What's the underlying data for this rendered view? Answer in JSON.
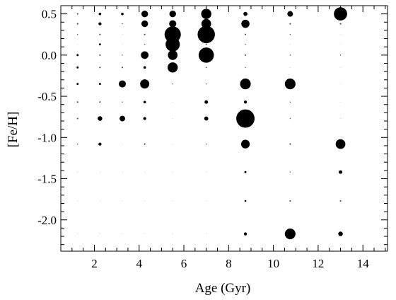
{
  "chart_data": {
    "type": "scatter",
    "title": "",
    "xlabel": "Age (Gyr)",
    "ylabel": "[Fe/H]",
    "xlim": [
      0.5,
      15.1
    ],
    "ylim": [
      -2.38,
      0.6
    ],
    "x_ticks": [
      2,
      4,
      6,
      8,
      10,
      12,
      14
    ],
    "x_tick_labels": [
      "2",
      "4",
      "6",
      "8",
      "10",
      "12",
      "14"
    ],
    "y_ticks": [
      0.5,
      0.0,
      -0.5,
      -1.0,
      -1.5,
      -2.0
    ],
    "y_tick_labels": [
      "0.5",
      "0.0",
      "-0.5",
      "-1.0",
      "-1.5",
      "-2.0"
    ],
    "grid": false,
    "marker_color": "#000000",
    "note": "Point value = relative marker size (weight) at each age / [Fe/H] bin",
    "ages": [
      1.25,
      2.25,
      3.25,
      4.25,
      5.5,
      7.0,
      8.75,
      10.75,
      13.0
    ],
    "feh": [
      0.5,
      0.38,
      0.25,
      0.13,
      0.0,
      -0.15,
      -0.35,
      -0.57,
      -0.77,
      -1.08,
      -1.42,
      -1.77,
      -2.17
    ],
    "points": [
      {
        "x": 1.25,
        "y": 0.5,
        "w": 0.3
      },
      {
        "x": 2.25,
        "y": 0.5,
        "w": 0.5
      },
      {
        "x": 3.25,
        "y": 0.5,
        "w": 0.5
      },
      {
        "x": 4.25,
        "y": 0.5,
        "w": 1.3
      },
      {
        "x": 5.5,
        "y": 0.5,
        "w": 1.3
      },
      {
        "x": 7.0,
        "y": 0.5,
        "w": 2.0
      },
      {
        "x": 8.75,
        "y": 0.5,
        "w": 0.8
      },
      {
        "x": 10.75,
        "y": 0.5,
        "w": 1.1
      },
      {
        "x": 13.0,
        "y": 0.5,
        "w": 2.6
      },
      {
        "x": 1.25,
        "y": 0.38,
        "w": 0.3
      },
      {
        "x": 2.25,
        "y": 0.38,
        "w": 0.6
      },
      {
        "x": 3.25,
        "y": 0.38,
        "w": 0.2
      },
      {
        "x": 4.25,
        "y": 0.38,
        "w": 1.3
      },
      {
        "x": 5.5,
        "y": 0.38,
        "w": 1.4
      },
      {
        "x": 7.0,
        "y": 0.38,
        "w": 1.9
      },
      {
        "x": 8.75,
        "y": 0.38,
        "w": 1.6
      },
      {
        "x": 10.75,
        "y": 0.38,
        "w": 0.3
      },
      {
        "x": 13.0,
        "y": 0.38,
        "w": 0.3
      },
      {
        "x": 1.25,
        "y": 0.25,
        "w": 0.2
      },
      {
        "x": 2.25,
        "y": 0.25,
        "w": 0.3
      },
      {
        "x": 3.25,
        "y": 0.25,
        "w": 0.15
      },
      {
        "x": 4.25,
        "y": 0.25,
        "w": 0.3
      },
      {
        "x": 5.5,
        "y": 0.25,
        "w": 3.2
      },
      {
        "x": 7.0,
        "y": 0.25,
        "w": 3.4
      },
      {
        "x": 8.75,
        "y": 0.25,
        "w": 0.3
      },
      {
        "x": 10.75,
        "y": 0.25,
        "w": 0.2
      },
      {
        "x": 13.0,
        "y": 0.25,
        "w": 0.15
      },
      {
        "x": 1.25,
        "y": 0.13,
        "w": 0.15
      },
      {
        "x": 2.25,
        "y": 0.13,
        "w": 0.4
      },
      {
        "x": 3.25,
        "y": 0.13,
        "w": 0.1
      },
      {
        "x": 4.25,
        "y": 0.13,
        "w": 0.2
      },
      {
        "x": 5.5,
        "y": 0.13,
        "w": 2.8
      },
      {
        "x": 7.0,
        "y": 0.13,
        "w": 0.3
      },
      {
        "x": 8.75,
        "y": 0.13,
        "w": 0.2
      },
      {
        "x": 10.75,
        "y": 0.13,
        "w": 0.15
      },
      {
        "x": 13.0,
        "y": 0.13,
        "w": 0.1
      },
      {
        "x": 1.25,
        "y": 0.0,
        "w": 0.4
      },
      {
        "x": 2.25,
        "y": 0.0,
        "w": 0.3
      },
      {
        "x": 3.25,
        "y": 0.0,
        "w": 0.2
      },
      {
        "x": 4.25,
        "y": 0.0,
        "w": 1.5
      },
      {
        "x": 5.5,
        "y": 0.0,
        "w": 1.9
      },
      {
        "x": 7.0,
        "y": 0.0,
        "w": 3.0
      },
      {
        "x": 8.75,
        "y": 0.0,
        "w": 0.3
      },
      {
        "x": 10.75,
        "y": 0.0,
        "w": 0.2
      },
      {
        "x": 13.0,
        "y": 0.0,
        "w": 0.2
      },
      {
        "x": 1.25,
        "y": -0.15,
        "w": 0.4
      },
      {
        "x": 2.25,
        "y": -0.15,
        "w": 0.3
      },
      {
        "x": 3.25,
        "y": -0.15,
        "w": 0.3
      },
      {
        "x": 4.25,
        "y": -0.15,
        "w": 0.5
      },
      {
        "x": 5.5,
        "y": -0.15,
        "w": 2.0
      },
      {
        "x": 7.0,
        "y": -0.15,
        "w": 0.25
      },
      {
        "x": 8.75,
        "y": -0.15,
        "w": 0.2
      },
      {
        "x": 10.75,
        "y": -0.15,
        "w": 0.15
      },
      {
        "x": 13.0,
        "y": -0.15,
        "w": 0.1
      },
      {
        "x": 1.25,
        "y": -0.35,
        "w": 0.4
      },
      {
        "x": 2.25,
        "y": -0.35,
        "w": 0.4
      },
      {
        "x": 3.25,
        "y": -0.35,
        "w": 1.4
      },
      {
        "x": 4.25,
        "y": -0.35,
        "w": 1.8
      },
      {
        "x": 5.5,
        "y": -0.35,
        "w": 0.2
      },
      {
        "x": 7.0,
        "y": -0.35,
        "w": 0.2
      },
      {
        "x": 8.75,
        "y": -0.35,
        "w": 2.1
      },
      {
        "x": 10.75,
        "y": -0.35,
        "w": 2.1
      },
      {
        "x": 13.0,
        "y": -0.35,
        "w": 0.15
      },
      {
        "x": 1.25,
        "y": -0.57,
        "w": 0.3
      },
      {
        "x": 2.25,
        "y": -0.57,
        "w": 0.3
      },
      {
        "x": 3.25,
        "y": -0.57,
        "w": 0.2
      },
      {
        "x": 4.25,
        "y": -0.57,
        "w": 0.5
      },
      {
        "x": 5.5,
        "y": -0.57,
        "w": 0.15
      },
      {
        "x": 7.0,
        "y": -0.57,
        "w": 0.7
      },
      {
        "x": 8.75,
        "y": -0.57,
        "w": 0.6
      },
      {
        "x": 10.75,
        "y": -0.57,
        "w": 0.2
      },
      {
        "x": 13.0,
        "y": -0.57,
        "w": 0.15
      },
      {
        "x": 1.25,
        "y": -0.77,
        "w": 0.3
      },
      {
        "x": 2.25,
        "y": -0.77,
        "w": 0.9
      },
      {
        "x": 3.25,
        "y": -0.77,
        "w": 1.1
      },
      {
        "x": 4.25,
        "y": -0.77,
        "w": 0.6
      },
      {
        "x": 5.5,
        "y": -0.77,
        "w": 0.15
      },
      {
        "x": 7.0,
        "y": -0.77,
        "w": 0.8
      },
      {
        "x": 8.75,
        "y": -0.77,
        "w": 3.6
      },
      {
        "x": 10.75,
        "y": -0.77,
        "w": 0.2
      },
      {
        "x": 13.0,
        "y": -0.77,
        "w": 0.15
      },
      {
        "x": 1.25,
        "y": -1.08,
        "w": 0.2
      },
      {
        "x": 2.25,
        "y": -1.08,
        "w": 0.6
      },
      {
        "x": 3.25,
        "y": -1.08,
        "w": 0.15
      },
      {
        "x": 4.25,
        "y": -1.08,
        "w": 0.3
      },
      {
        "x": 5.5,
        "y": -1.08,
        "w": 0.1
      },
      {
        "x": 7.0,
        "y": -1.08,
        "w": 0.2
      },
      {
        "x": 8.75,
        "y": -1.08,
        "w": 1.7
      },
      {
        "x": 10.75,
        "y": -1.08,
        "w": 0.3
      },
      {
        "x": 13.0,
        "y": -1.08,
        "w": 1.9
      },
      {
        "x": 1.25,
        "y": -1.42,
        "w": 0.15
      },
      {
        "x": 2.25,
        "y": -1.42,
        "w": 0.1
      },
      {
        "x": 3.25,
        "y": -1.42,
        "w": 0.1
      },
      {
        "x": 4.25,
        "y": -1.42,
        "w": 0.15
      },
      {
        "x": 5.5,
        "y": -1.42,
        "w": 0.1
      },
      {
        "x": 7.0,
        "y": -1.42,
        "w": 0.1
      },
      {
        "x": 8.75,
        "y": -1.42,
        "w": 0.4
      },
      {
        "x": 10.75,
        "y": -1.42,
        "w": 0.2
      },
      {
        "x": 13.0,
        "y": -1.42,
        "w": 0.7
      },
      {
        "x": 1.25,
        "y": -1.77,
        "w": 0.1
      },
      {
        "x": 2.25,
        "y": -1.77,
        "w": 0.1
      },
      {
        "x": 3.25,
        "y": -1.77,
        "w": 0.1
      },
      {
        "x": 4.25,
        "y": -1.77,
        "w": 0.1
      },
      {
        "x": 5.5,
        "y": -1.77,
        "w": 0.1
      },
      {
        "x": 7.0,
        "y": -1.77,
        "w": 0.1
      },
      {
        "x": 8.75,
        "y": -1.77,
        "w": 0.35
      },
      {
        "x": 10.75,
        "y": -1.77,
        "w": 0.3
      },
      {
        "x": 13.0,
        "y": -1.77,
        "w": 0.3
      },
      {
        "x": 1.25,
        "y": -2.17,
        "w": 0.1
      },
      {
        "x": 2.25,
        "y": -2.17,
        "w": 0.1
      },
      {
        "x": 3.25,
        "y": -2.17,
        "w": 0.1
      },
      {
        "x": 4.25,
        "y": -2.17,
        "w": 0.15
      },
      {
        "x": 5.5,
        "y": -2.17,
        "w": 0.1
      },
      {
        "x": 7.0,
        "y": -2.17,
        "w": 0.15
      },
      {
        "x": 8.75,
        "y": -2.17,
        "w": 0.6
      },
      {
        "x": 10.75,
        "y": -2.17,
        "w": 2.1
      },
      {
        "x": 13.0,
        "y": -2.17,
        "w": 0.9
      }
    ]
  }
}
